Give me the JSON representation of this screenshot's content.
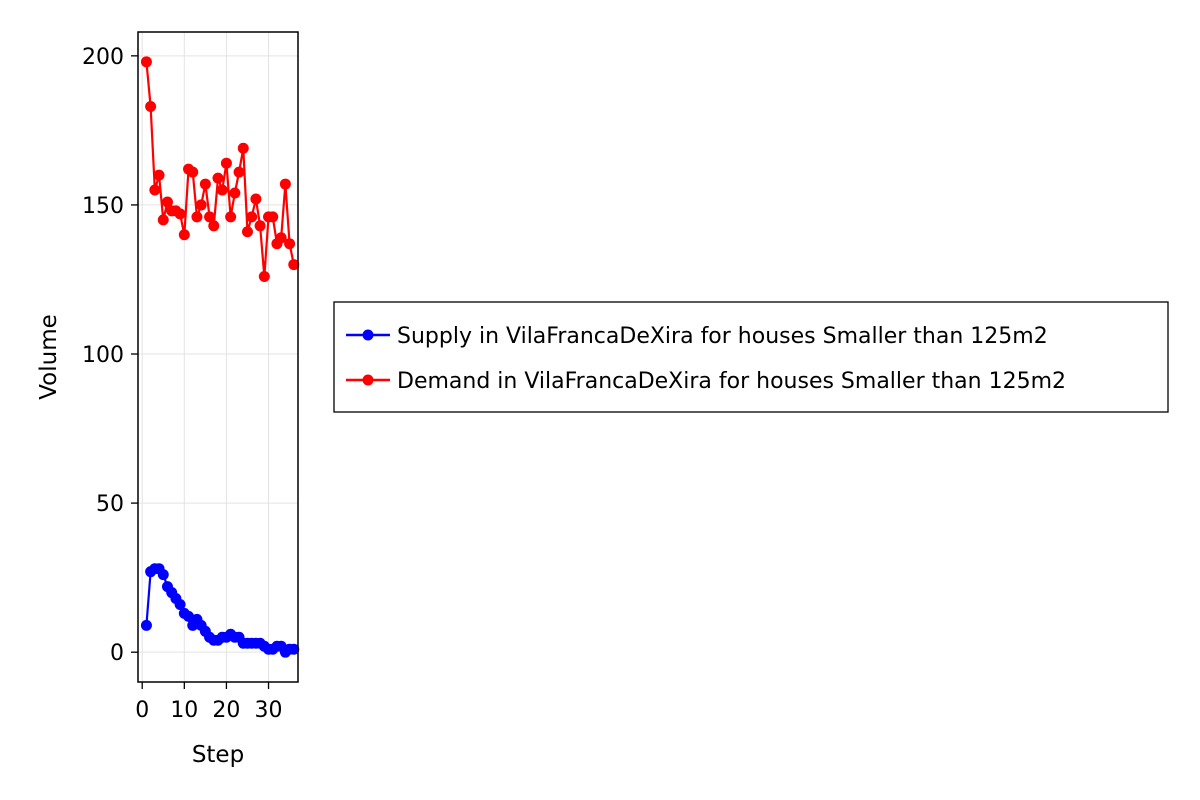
{
  "chart_data": {
    "type": "line",
    "title": "",
    "xlabel": "Step",
    "ylabel": "Volume",
    "xlim": [
      -1,
      37
    ],
    "ylim": [
      -10,
      208
    ],
    "xticks": [
      0,
      10,
      20,
      30
    ],
    "yticks": [
      0,
      50,
      100,
      150,
      200
    ],
    "xtick_labels": [
      "0",
      "10",
      "20",
      "30"
    ],
    "ytick_labels": [
      "0",
      "50",
      "100",
      "150",
      "200"
    ],
    "grid": true,
    "legend_position": "right",
    "series": [
      {
        "name": "Supply in VilaFrancaDeXira for houses Smaller than 125m2",
        "color": "#0000ff",
        "x": [
          1,
          2,
          3,
          4,
          5,
          6,
          7,
          8,
          9,
          10,
          11,
          12,
          13,
          14,
          15,
          16,
          17,
          18,
          19,
          20,
          21,
          22,
          23,
          24,
          25,
          26,
          27,
          28,
          29,
          30,
          31,
          32,
          33,
          34,
          35,
          36
        ],
        "values": [
          9,
          27,
          28,
          28,
          26,
          22,
          20,
          18,
          16,
          13,
          12,
          9,
          11,
          9,
          7,
          5,
          4,
          4,
          5,
          5,
          6,
          5,
          5,
          3,
          3,
          3,
          3,
          3,
          2,
          1,
          1,
          2,
          2,
          0,
          1,
          1
        ]
      },
      {
        "name": "Demand in VilaFrancaDeXira for houses Smaller than 125m2",
        "color": "#ff0000",
        "x": [
          1,
          2,
          3,
          4,
          5,
          6,
          7,
          8,
          9,
          10,
          11,
          12,
          13,
          14,
          15,
          16,
          17,
          18,
          19,
          20,
          21,
          22,
          23,
          24,
          25,
          26,
          27,
          28,
          29,
          30,
          31,
          32,
          33,
          34,
          35,
          36
        ],
        "values": [
          198,
          183,
          155,
          160,
          145,
          151,
          148,
          148,
          147,
          140,
          162,
          161,
          146,
          150,
          157,
          146,
          143,
          159,
          155,
          164,
          146,
          154,
          161,
          169,
          141,
          146,
          152,
          143,
          126,
          146,
          146,
          137,
          139,
          157,
          137,
          130
        ]
      }
    ]
  }
}
